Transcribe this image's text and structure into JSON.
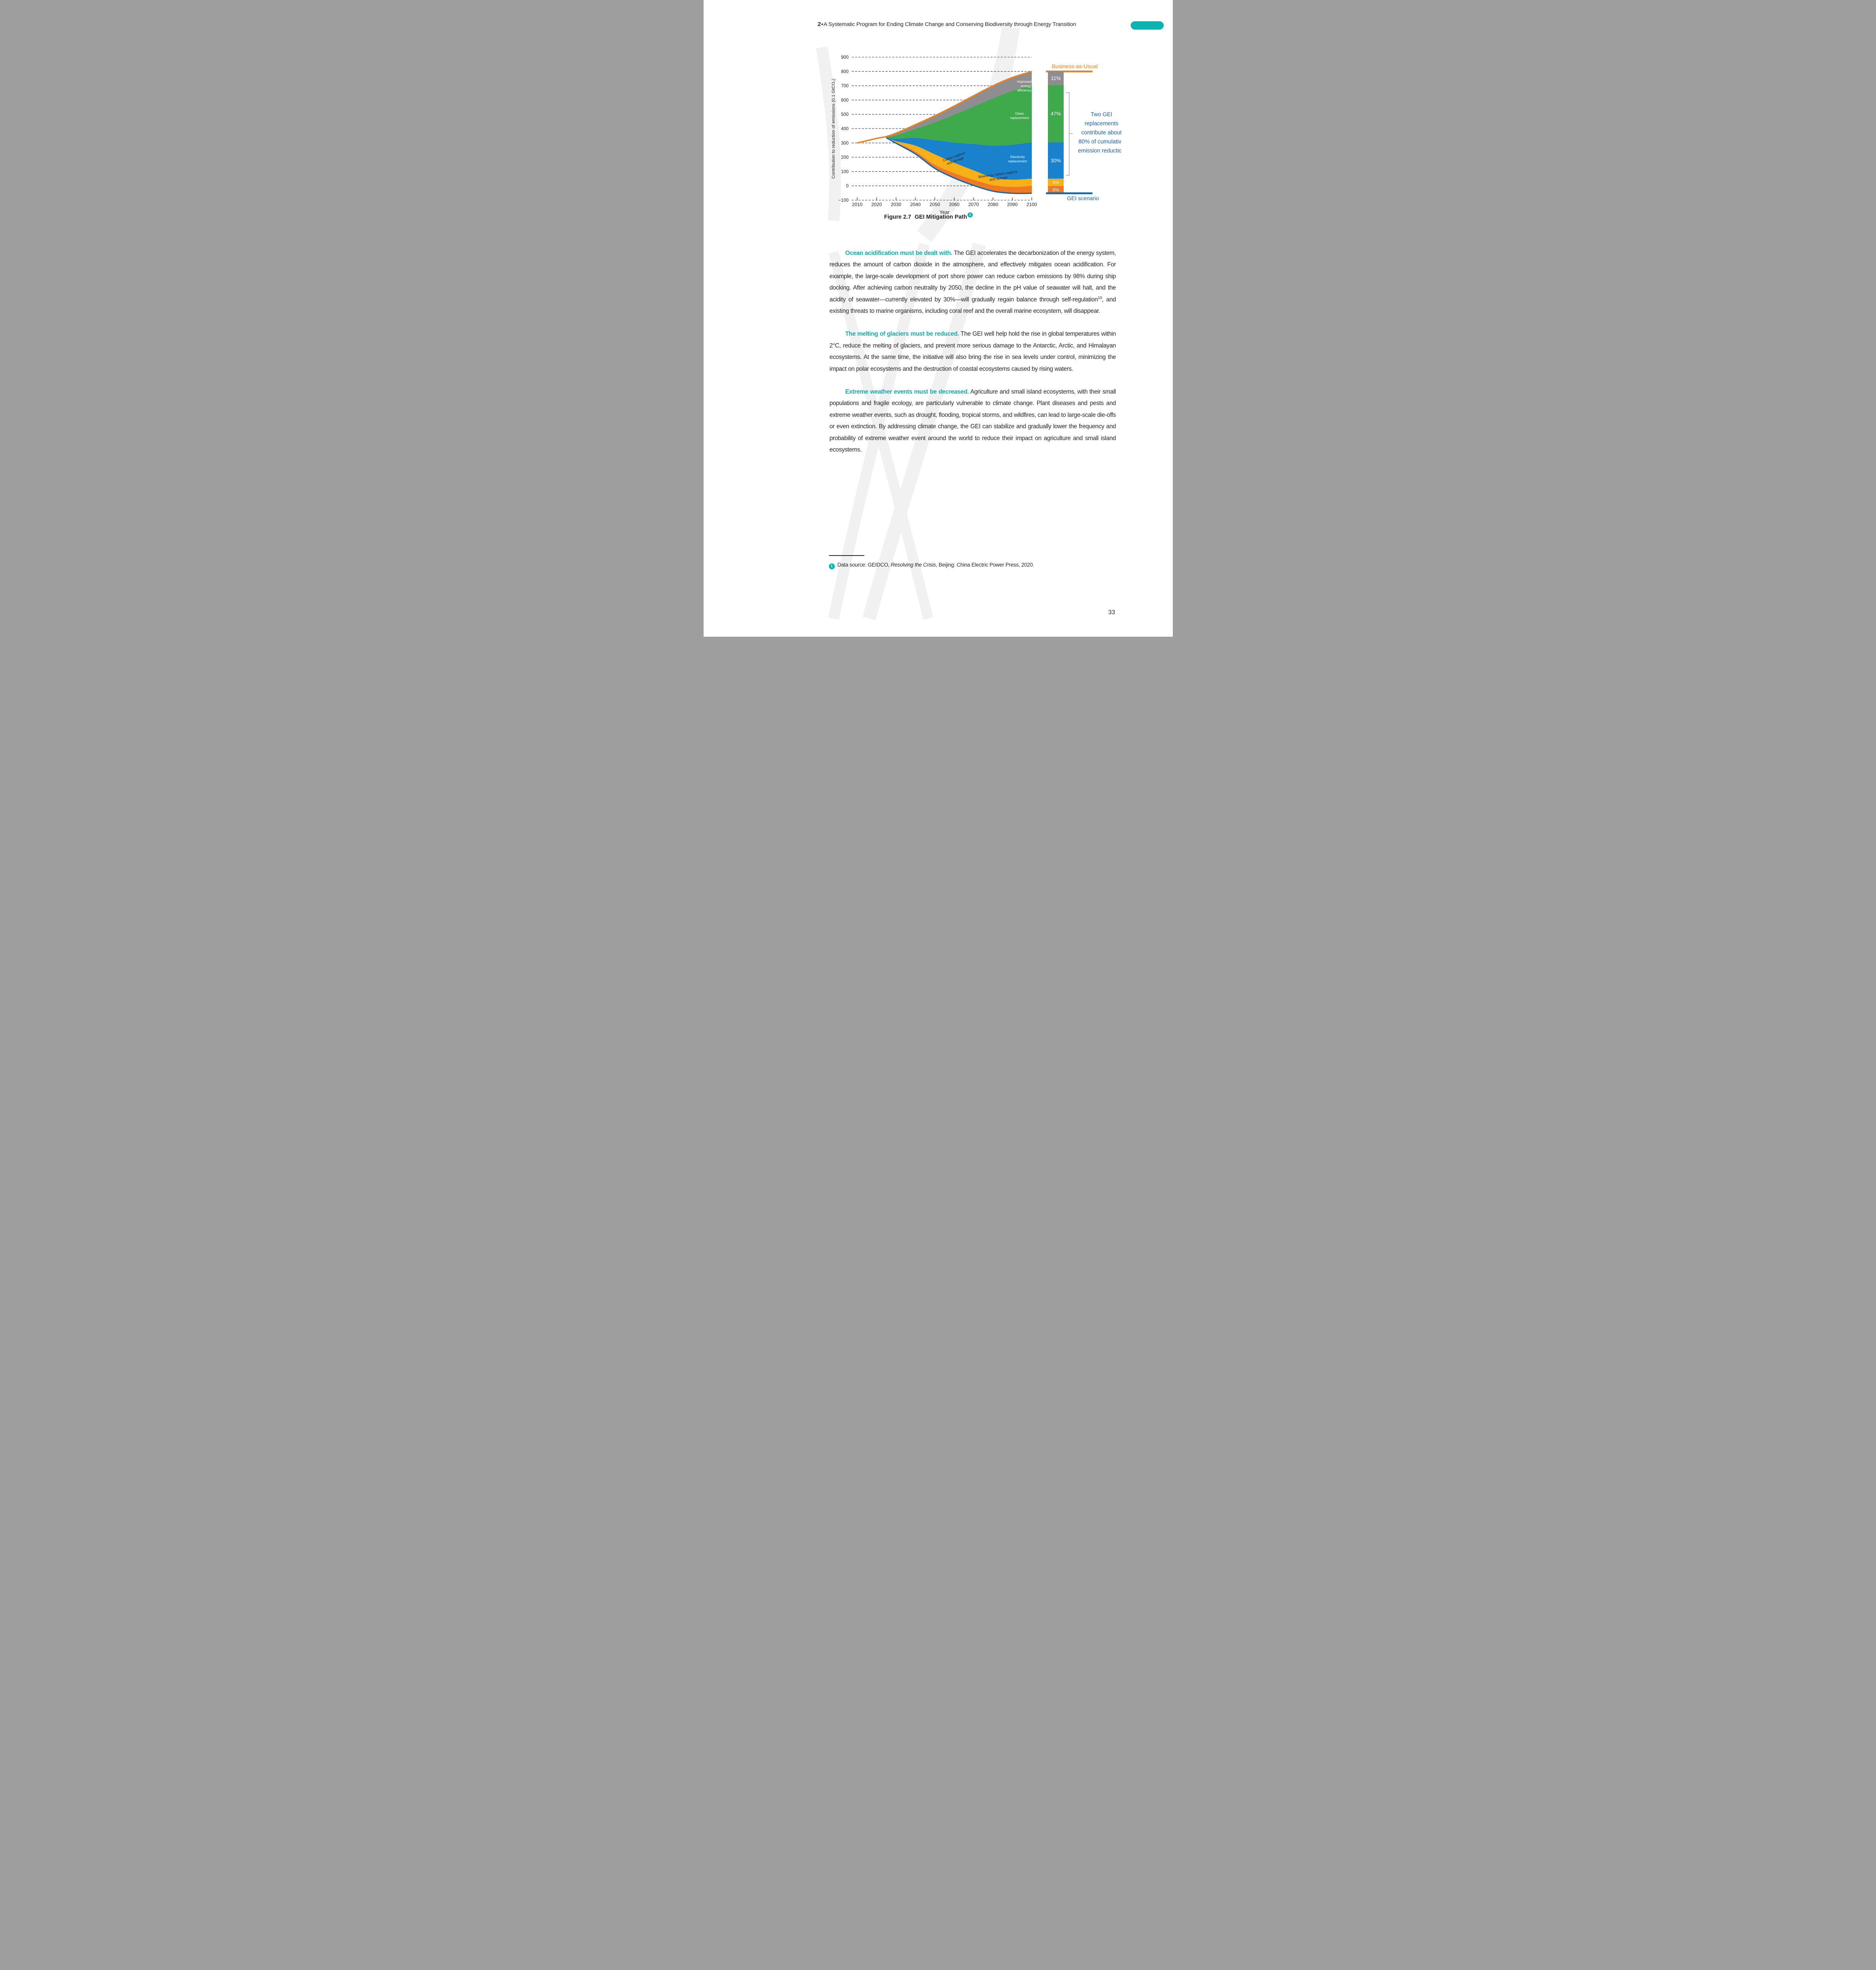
{
  "page": {
    "number": "33"
  },
  "header": {
    "chapter_number": "2",
    "bullet": "•",
    "title": "A Systematic Program for Ending Climate Change and Conserving Biodiversity through Energy Transition"
  },
  "figure": {
    "caption_label": "Figure 2.7",
    "caption_title": "GEI Mitigation Path",
    "footnote_marker": "1"
  },
  "chart_data": {
    "type": "area",
    "title": "GEI Mitigation Path",
    "xlabel": "Year",
    "ylabel": "Contribution to reduction of emissions (0.1 GtCO₂)",
    "ylim": [
      -100,
      900
    ],
    "ytick_step": 100,
    "grid": "horizontal dashed",
    "legend_position": "labels inside bands",
    "x": [
      2010,
      2020,
      2025,
      2030,
      2040,
      2050,
      2060,
      2070,
      2080,
      2090,
      2100
    ],
    "xticks": [
      2010,
      2020,
      2030,
      2040,
      2050,
      2060,
      2070,
      2080,
      2090,
      2100
    ],
    "business_as_usual": {
      "name": "Business-as-Usual",
      "color": "#f0801e",
      "values": [
        300,
        332,
        345,
        368,
        428,
        490,
        558,
        630,
        700,
        758,
        800
      ]
    },
    "gei_scenario": {
      "name": "GEI scenario",
      "color": "#1566ae",
      "values": [
        300,
        332,
        336,
        298,
        223,
        122,
        55,
        3,
        -37,
        -52,
        -52
      ]
    },
    "bands": [
      {
        "name": "Improved energy efficiency",
        "label_lines": [
          "Improved",
          "energy",
          "efficiency"
        ],
        "color": "#8e8e90",
        "share_label": "11%",
        "thickness": [
          0,
          0,
          3,
          14,
          30,
          45,
          60,
          75,
          88,
          94,
          95
        ]
      },
      {
        "name": "Clean replacement",
        "label_lines": [
          "Clean",
          "replacement"
        ],
        "color": "#3faa4b",
        "share_label": "47%",
        "thickness": [
          0,
          0,
          2,
          24,
          62,
          125,
          195,
          262,
          330,
          376,
          400
        ]
      },
      {
        "name": "Electricity replacement",
        "label_lines": [
          "Electricity",
          "replacement"
        ],
        "color": "#1a82cc",
        "share_label": "30%",
        "thickness": [
          0,
          0,
          2,
          18,
          55,
          100,
          142,
          185,
          224,
          245,
          255
        ]
      },
      {
        "name": "Carbon capture and storage",
        "label_lines": [
          "Carbon capture",
          "and storage"
        ],
        "color": "#f7b018",
        "share_label": "6%",
        "thickness": [
          0,
          0,
          1,
          8,
          42,
          72,
          72,
          65,
          53,
          50,
          50
        ]
      },
      {
        "name": "Bioenergy carbon capture and storage",
        "label_lines": [
          "Bioenergy carbon capture",
          "and storage"
        ],
        "color": "#ee7a26",
        "share_label": "6%",
        "thickness": [
          0,
          0,
          1,
          6,
          16,
          26,
          34,
          40,
          42,
          45,
          52
        ]
      }
    ],
    "annotation": "Two GEI replacements contribute about 80% of cumulative emission reduction",
    "annotation_lines": [
      "Two GEI",
      "replacements",
      "contribute about",
      "80% of cumulative",
      "emission reduction"
    ],
    "annotation_color": "#1e63a8",
    "bracket_color": "#a9afcc"
  },
  "paragraphs": [
    {
      "lead": "Ocean acidification must be dealt with.",
      "segments": [
        {
          "text": " The GEI accelerates the decarbonization of the energy system, reduces the amount of carbon dioxide in the atmosphere, and effectively mitigates ocean acidification. For example, the large-scale development of port shore power can reduce carbon emissions by 98% during ship docking. After achieving carbon neutrality by 2050, the decline in the pH value of seawater will halt, and the acidity of seawater—currently elevated by 30%—will gradually regain balance through self-regulation"
        },
        {
          "text": "10",
          "sup": true
        },
        {
          "text": ", and existing threats to marine organisms, including coral reef and the overall marine ecosystem, will disappear."
        }
      ]
    },
    {
      "lead": "The melting of glaciers must be reduced.",
      "segments": [
        {
          "text": " The GEI well help hold the rise in global temperatures within 2°C, reduce the melting of glaciers, and prevent more serious damage to the Antarctic, Arctic, and Himalayan ecosystems. At the same time, the initiative will also bring the rise in sea levels under control, minimizing the impact on polar ecosystems and the destruction of coastal ecosystems caused by rising waters."
        }
      ]
    },
    {
      "lead": "Extreme weather events must be decreased.",
      "segments": [
        {
          "text": " Agriculture and small island ecosystems, with their small populations and fragile ecology, are particularly vulnerable to climate change. Plant diseases and pests and extreme weather events, such as drought, flooding, tropical storms, and wildfires, can lead to large-scale die-offs or even extinction. By addressing climate change, the GEI can stabilize and gradually lower the frequency and probability of extreme weather event around the world to reduce their impact on agriculture and small island ecosystems."
        }
      ]
    }
  ],
  "footnote": {
    "marker": "1",
    "prefix": "Data source: GEIDCO, ",
    "italic": "Resolving the Crisis",
    "suffix": ", Beijing: China Electric Power Press, 2020."
  },
  "colors": {
    "accent_teal": "#0db3b3",
    "heading_teal": "#13b0b1",
    "text": "#2a2526",
    "bau_orange": "#f0801e",
    "gei_blue": "#1566ae",
    "annotation_blue": "#1e63a8"
  }
}
